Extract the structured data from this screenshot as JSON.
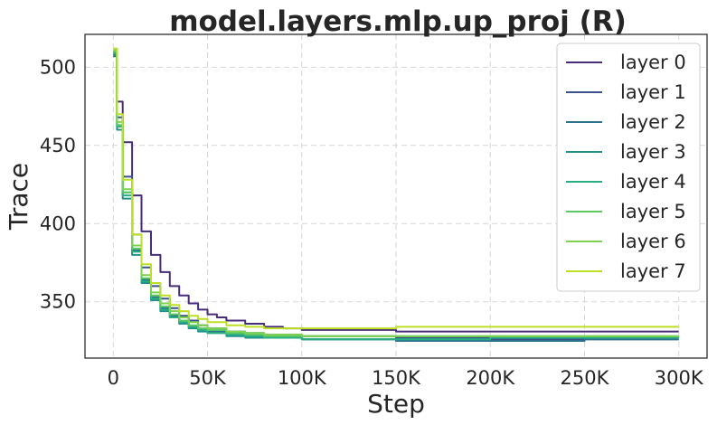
{
  "chart_data": {
    "type": "line",
    "title": "model.layers.mlp.up_proj (R)",
    "xlabel": "Step",
    "ylabel": "Trace",
    "xlim": [
      -15000,
      315000
    ],
    "ylim": [
      314,
      521
    ],
    "x_ticks": [
      0,
      50000,
      100000,
      150000,
      200000,
      250000,
      300000
    ],
    "x_tick_labels": [
      "0",
      "50K",
      "100K",
      "150K",
      "200K",
      "250K",
      "300K"
    ],
    "y_ticks": [
      350,
      400,
      450,
      500
    ],
    "y_tick_labels": [
      "350",
      "400",
      "450",
      "500"
    ],
    "grid": true,
    "legend_position": "top-right",
    "series": [
      {
        "name": "layer 0",
        "color": "#472c7a",
        "x": [
          0,
          2000,
          5000,
          10000,
          15000,
          20000,
          25000,
          30000,
          35000,
          40000,
          45000,
          50000,
          55000,
          60000,
          70000,
          80000,
          90000,
          100000,
          150000,
          200000,
          250000,
          300000
        ],
        "y": [
          510,
          478,
          452,
          418,
          395,
          380,
          369,
          360,
          354,
          349,
          345,
          342,
          340,
          338,
          336,
          334,
          333,
          332,
          331,
          331,
          331,
          331
        ]
      },
      {
        "name": "layer 1",
        "color": "#3b518b",
        "x": [
          0,
          2000,
          5000,
          10000,
          15000,
          20000,
          25000,
          30000,
          35000,
          40000,
          45000,
          50000,
          60000,
          70000,
          80000,
          100000,
          150000,
          200000,
          250000,
          300000
        ],
        "y": [
          508,
          468,
          430,
          393,
          372,
          360,
          352,
          346,
          341,
          338,
          335,
          333,
          331,
          330,
          329,
          328,
          327,
          326,
          326,
          326
        ]
      },
      {
        "name": "layer 2",
        "color": "#2c718e",
        "x": [
          0,
          2000,
          5000,
          10000,
          15000,
          20000,
          25000,
          30000,
          35000,
          40000,
          45000,
          50000,
          60000,
          70000,
          80000,
          100000,
          150000,
          200000,
          250000,
          300000
        ],
        "y": [
          507,
          462,
          420,
          383,
          364,
          353,
          346,
          341,
          337,
          334,
          332,
          331,
          329,
          328,
          327,
          326,
          325,
          325,
          326,
          326
        ]
      },
      {
        "name": "layer 3",
        "color": "#21908d",
        "x": [
          0,
          2000,
          5000,
          10000,
          15000,
          20000,
          25000,
          30000,
          35000,
          40000,
          45000,
          50000,
          60000,
          70000,
          80000,
          100000,
          150000,
          200000,
          250000,
          300000
        ],
        "y": [
          508,
          460,
          416,
          380,
          362,
          351,
          344,
          340,
          336,
          333,
          331,
          330,
          328,
          327,
          327,
          326,
          326,
          327,
          327,
          327
        ]
      },
      {
        "name": "layer 4",
        "color": "#27ad81",
        "x": [
          0,
          2000,
          5000,
          10000,
          15000,
          20000,
          25000,
          30000,
          35000,
          40000,
          45000,
          50000,
          60000,
          70000,
          80000,
          100000,
          150000,
          200000,
          250000,
          300000
        ],
        "y": [
          509,
          462,
          418,
          382,
          363,
          352,
          345,
          340,
          337,
          334,
          332,
          330,
          329,
          328,
          327,
          326,
          326,
          327,
          327,
          327
        ]
      },
      {
        "name": "layer 5",
        "color": "#5cc863",
        "x": [
          0,
          2000,
          5000,
          10000,
          15000,
          20000,
          25000,
          30000,
          35000,
          40000,
          45000,
          50000,
          60000,
          70000,
          80000,
          100000,
          150000,
          200000,
          250000,
          300000
        ],
        "y": [
          510,
          463,
          420,
          384,
          365,
          354,
          347,
          342,
          338,
          335,
          333,
          332,
          330,
          329,
          328,
          328,
          328,
          328,
          328,
          328
        ]
      },
      {
        "name": "layer 6",
        "color": "#7dd34f",
        "x": [
          0,
          2000,
          5000,
          10000,
          15000,
          20000,
          25000,
          30000,
          35000,
          40000,
          45000,
          50000,
          60000,
          70000,
          80000,
          100000,
          150000,
          200000,
          250000,
          300000
        ],
        "y": [
          511,
          465,
          422,
          386,
          367,
          356,
          349,
          344,
          340,
          337,
          335,
          333,
          331,
          330,
          329,
          328,
          328,
          328,
          328,
          328
        ]
      },
      {
        "name": "layer 7",
        "color": "#bddf26",
        "x": [
          0,
          2000,
          5000,
          10000,
          15000,
          20000,
          25000,
          30000,
          35000,
          40000,
          45000,
          50000,
          60000,
          70000,
          80000,
          90000,
          100000,
          125000,
          150000,
          200000,
          250000,
          300000
        ],
        "y": [
          512,
          470,
          428,
          393,
          374,
          362,
          354,
          348,
          344,
          341,
          339,
          337,
          335,
          334,
          333,
          333,
          333,
          333,
          334,
          334,
          334,
          334
        ]
      }
    ]
  }
}
